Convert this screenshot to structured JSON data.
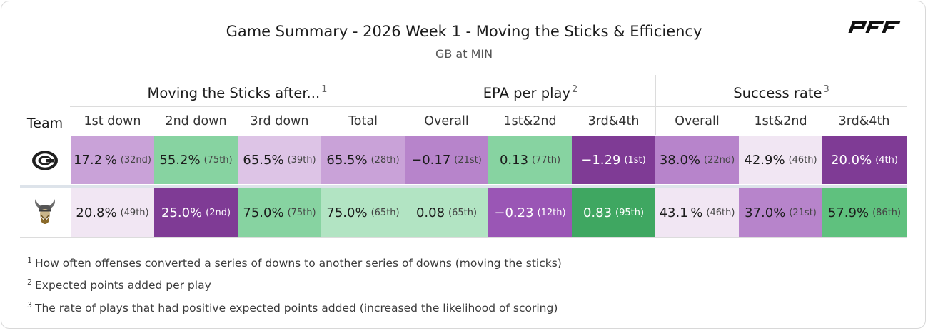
{
  "header": {
    "title": "Game Summary - 2026 Week 1 - Moving the Sticks & Efficiency",
    "subtitle": "GB at MIN",
    "brand": "PFF"
  },
  "groups": [
    {
      "label": "Moving the Sticks after...",
      "note": "1"
    },
    {
      "label": "EPA per play",
      "note": "2"
    },
    {
      "label": "Success rate",
      "note": "3"
    }
  ],
  "columns": {
    "team": "Team",
    "labels": [
      "1st down",
      "2nd down",
      "3rd down",
      "Total",
      "Overall",
      "1st&2nd",
      "3rd&4th",
      "Overall",
      "1st&2nd",
      "3rd&4th"
    ]
  },
  "rows": [
    {
      "team_logo": "packers-logo-icon",
      "cells": [
        {
          "v": "17.2 %",
          "r": "(32nd)",
          "bg": "#c9a2d8"
        },
        {
          "v": "55.2%",
          "r": "(75th)",
          "bg": "#87d3a1"
        },
        {
          "v": "65.5%",
          "r": "(39th)",
          "bg": "#ddc4e6"
        },
        {
          "v": "65.5%",
          "r": "(28th)",
          "bg": "#c9a2d8"
        },
        {
          "v": "−0.17",
          "r": "(21st)",
          "bg": "#b784cb"
        },
        {
          "v": "0.13",
          "r": "(77th)",
          "bg": "#87d3a1"
        },
        {
          "v": "−1.29",
          "r": "(1st)",
          "bg": "#7f3b95",
          "dark": true
        },
        {
          "v": "38.0%",
          "r": "(22nd)",
          "bg": "#b784cb"
        },
        {
          "v": "42.9%",
          "r": "(46th)",
          "bg": "#f1e6f3"
        },
        {
          "v": "20.0%",
          "r": "(4th)",
          "bg": "#7f3b95",
          "dark": true
        }
      ]
    },
    {
      "team_logo": "vikings-logo-icon",
      "cells": [
        {
          "v": "20.8%",
          "r": "(49th)",
          "bg": "#f1e6f3"
        },
        {
          "v": "25.0%",
          "r": "(2nd)",
          "bg": "#7f3b95",
          "dark": true
        },
        {
          "v": "75.0%",
          "r": "(75th)",
          "bg": "#87d3a1"
        },
        {
          "v": "75.0%",
          "r": "(65th)",
          "bg": "#b2e4c3"
        },
        {
          "v": "0.08",
          "r": "(65th)",
          "bg": "#b2e4c3"
        },
        {
          "v": "−0.23",
          "r": "(12th)",
          "bg": "#9a56b5",
          "dark": true
        },
        {
          "v": "0.83",
          "r": "(95th)",
          "bg": "#3fa761",
          "dark": true
        },
        {
          "v": "43.1 %",
          "r": "(46th)",
          "bg": "#f1e6f3"
        },
        {
          "v": "37.0%",
          "r": "(21st)",
          "bg": "#b784cb"
        },
        {
          "v": "57.9%",
          "r": "(86th)",
          "bg": "#5fc17e"
        }
      ]
    }
  ],
  "footnotes": [
    {
      "n": "1",
      "text": "How often offenses converted a series of downs to another series of downs (moving the sticks)"
    },
    {
      "n": "2",
      "text": "Expected points added per play"
    },
    {
      "n": "3",
      "text": "The rate of plays that had positive expected points added (increased the likelihood of scoring)"
    }
  ]
}
